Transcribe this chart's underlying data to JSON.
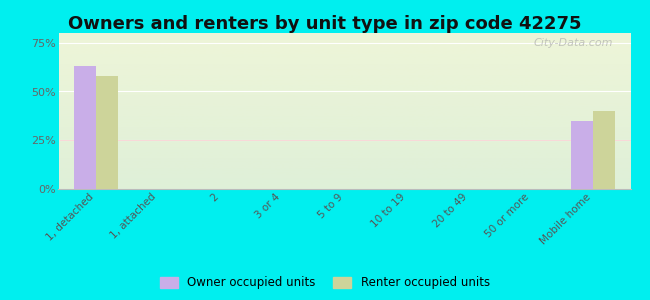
{
  "title": "Owners and renters by unit type in zip code 42275",
  "categories": [
    "1, detached",
    "1, attached",
    "2",
    "3 or 4",
    "5 to 9",
    "10 to 19",
    "20 to 49",
    "50 or more",
    "Mobile home"
  ],
  "owner_values": [
    63,
    0,
    0,
    0,
    0,
    0,
    0,
    0,
    35
  ],
  "renter_values": [
    58,
    0,
    0,
    0,
    0,
    0,
    0,
    0,
    40
  ],
  "owner_color": "#c9aee8",
  "renter_color": "#cdd49a",
  "yticks": [
    0,
    25,
    50,
    75
  ],
  "ylim": [
    0,
    80
  ],
  "background_color": "#00efef",
  "watermark": "City-Data.com",
  "bar_width": 0.35,
  "title_fontsize": 13
}
